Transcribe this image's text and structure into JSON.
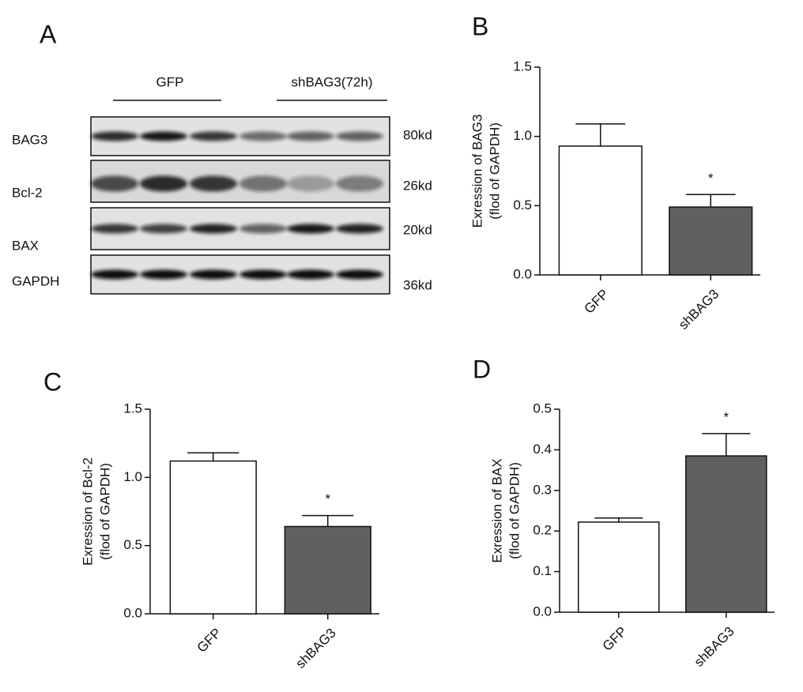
{
  "panel_labels": [
    "A",
    "B",
    "C",
    "D"
  ],
  "blot": {
    "groups": [
      "GFP",
      "shBAG3(72h)"
    ],
    "rows": [
      {
        "label": "BAG3",
        "size": "80kd"
      },
      {
        "label": "Bcl-2",
        "size": "26kd"
      },
      {
        "label": "BAX",
        "size": "20kd"
      },
      {
        "label": "GAPDH",
        "size": "36kd"
      }
    ]
  },
  "chart_data": [
    {
      "type": "bar",
      "ylabel": [
        "Exression of BAG3",
        "(flod of GAPDH)"
      ],
      "categories": [
        "GFP",
        "shBAG3"
      ],
      "values": [
        0.93,
        0.49
      ],
      "errors": [
        0.16,
        0.09
      ],
      "significance": [
        null,
        "*"
      ],
      "colors": [
        "#ffffff",
        "#606060"
      ],
      "ylim": [
        0,
        1.5
      ],
      "yticks": [
        {
          "value": 0,
          "label": "0.0"
        },
        0.5,
        {
          "value": 1,
          "label": "1.0"
        },
        1.5
      ]
    },
    {
      "type": "bar",
      "ylabel": [
        "Exression of Bcl-2",
        "(flod of GAPDH)"
      ],
      "categories": [
        "GFP",
        "shBAG3"
      ],
      "values": [
        1.12,
        0.64
      ],
      "errors": [
        0.06,
        0.08
      ],
      "significance": [
        null,
        "*"
      ],
      "colors": [
        "#ffffff",
        "#606060"
      ],
      "ylim": [
        0,
        1.5
      ],
      "yticks": [
        {
          "value": 0,
          "label": "0.0"
        },
        0.5,
        {
          "value": 1,
          "label": "1.0"
        },
        1.5
      ]
    },
    {
      "type": "bar",
      "ylabel": [
        "Exression of BAX",
        "(flod of GAPDH)"
      ],
      "categories": [
        "GFP",
        "shBAG3"
      ],
      "values": [
        0.222,
        0.385
      ],
      "errors": [
        0.01,
        0.055
      ],
      "significance": [
        null,
        "*"
      ],
      "colors": [
        "#ffffff",
        "#606060"
      ],
      "ylim": [
        0,
        0.5
      ],
      "yticks": [
        {
          "value": 0,
          "label": "0.0"
        },
        0.1,
        0.2,
        0.3,
        0.4,
        0.5
      ]
    }
  ]
}
